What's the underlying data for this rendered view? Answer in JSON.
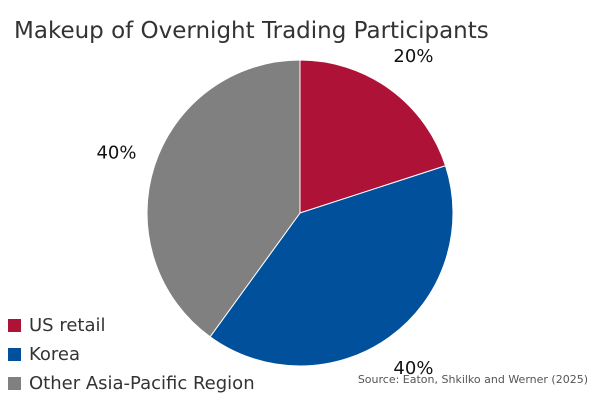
{
  "chart_data": {
    "type": "pie",
    "title": "Makeup of Overnight Trading Participants",
    "source": "Source: Eaton, Shkilko and Werner (2025)",
    "slices": [
      {
        "label": "US retail",
        "value": 20,
        "display": "20%",
        "color": "#AE1236"
      },
      {
        "label": "Korea",
        "value": 40,
        "display": "40%",
        "color": "#00509B"
      },
      {
        "label": "Other Asia-Pacific Region",
        "value": 40,
        "display": "40%",
        "color": "#808080"
      }
    ],
    "legend_position": "bottom-left",
    "start": "top, clockwise"
  }
}
